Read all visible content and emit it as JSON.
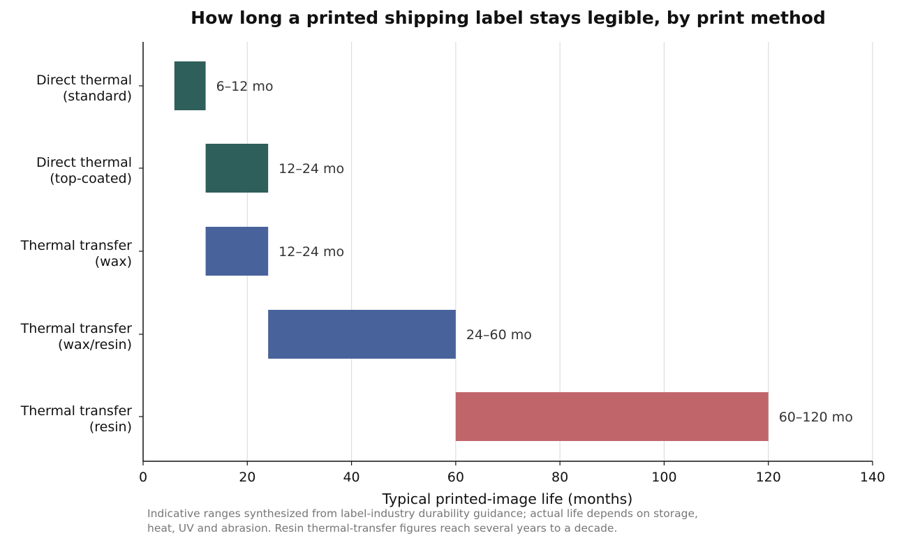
{
  "chart_data": {
    "type": "bar",
    "orientation": "horizontal-range",
    "title": "How long a printed shipping label stays legible, by print method",
    "xlabel": "Typical printed-image life (months)",
    "ylabel": "",
    "xlim": [
      0,
      140
    ],
    "xticks": [
      "0",
      "20",
      "40",
      "60",
      "80",
      "100",
      "120",
      "140"
    ],
    "grid": "vertical",
    "legend": "none",
    "categories": [
      [
        "Direct thermal",
        "(standard)"
      ],
      [
        "Direct thermal",
        "(top-coated)"
      ],
      [
        "Thermal transfer",
        "(wax)"
      ],
      [
        "Thermal transfer",
        "(wax/resin)"
      ],
      [
        "Thermal transfer",
        "(resin)"
      ]
    ],
    "ranges": [
      {
        "start": 6,
        "end": 12,
        "label": "6–12 mo",
        "color": "#2e5f5b"
      },
      {
        "start": 12,
        "end": 24,
        "label": "12–24 mo",
        "color": "#2e5f5b"
      },
      {
        "start": 12,
        "end": 24,
        "label": "12–24 mo",
        "color": "#48629b"
      },
      {
        "start": 24,
        "end": 60,
        "label": "24–60 mo",
        "color": "#48629b"
      },
      {
        "start": 60,
        "end": 120,
        "label": "60–120 mo",
        "color": "#c0666b"
      }
    ],
    "note": [
      "Indicative ranges synthesized from label-industry durability guidance; actual life depends on storage,",
      "heat, UV and abrasion. Resin thermal-transfer figures reach several years to a decade."
    ]
  }
}
